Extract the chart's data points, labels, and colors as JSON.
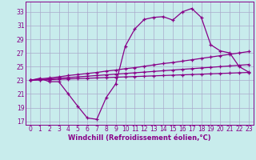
{
  "background_color": "#c8ecec",
  "grid_color": "#aaaacc",
  "line_color": "#880088",
  "xlabel_color": "#880088",
  "xlabel": "Windchill (Refroidissement éolien,°C)",
  "xlim": [
    -0.5,
    23.5
  ],
  "ylim": [
    16.5,
    34.5
  ],
  "yticks": [
    17,
    19,
    21,
    23,
    25,
    27,
    29,
    31,
    33
  ],
  "xticks": [
    0,
    1,
    2,
    3,
    4,
    5,
    6,
    7,
    8,
    9,
    10,
    11,
    12,
    13,
    14,
    15,
    16,
    17,
    18,
    19,
    20,
    21,
    22,
    23
  ],
  "series1": [
    23.0,
    23.3,
    22.8,
    22.8,
    21.0,
    19.2,
    17.5,
    17.3,
    20.5,
    22.5,
    28.0,
    30.5,
    31.9,
    32.2,
    32.3,
    31.8,
    33.0,
    33.5,
    32.2,
    28.2,
    27.3,
    27.0,
    25.0,
    24.2
  ],
  "series2": [
    23.0,
    23.2,
    23.35,
    23.5,
    23.7,
    23.85,
    24.0,
    24.15,
    24.35,
    24.5,
    24.7,
    24.85,
    25.05,
    25.25,
    25.45,
    25.6,
    25.8,
    26.0,
    26.2,
    26.4,
    26.6,
    26.8,
    27.0,
    27.2
  ],
  "series3": [
    23.0,
    23.1,
    23.2,
    23.3,
    23.4,
    23.5,
    23.6,
    23.7,
    23.8,
    23.9,
    24.0,
    24.1,
    24.2,
    24.3,
    24.4,
    24.5,
    24.6,
    24.7,
    24.8,
    24.9,
    25.0,
    25.1,
    25.2,
    25.3
  ],
  "series4": [
    23.0,
    23.05,
    23.1,
    23.15,
    23.2,
    23.25,
    23.3,
    23.35,
    23.4,
    23.45,
    23.5,
    23.55,
    23.6,
    23.65,
    23.7,
    23.75,
    23.8,
    23.85,
    23.9,
    23.95,
    24.0,
    24.05,
    24.1,
    24.15
  ],
  "marker": "+",
  "markersize": 3.5,
  "linewidth": 0.9,
  "tick_fontsize": 5.5,
  "xlabel_fontsize": 6.0
}
